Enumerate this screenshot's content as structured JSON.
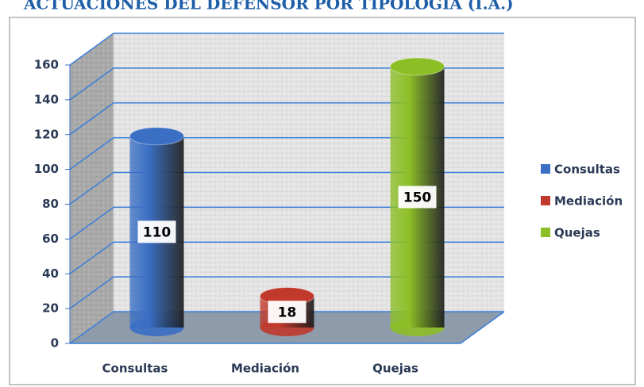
{
  "chart_data": {
    "type": "bar",
    "title": "ACTUACIONES DEL DEFENSOR POR TIPOLOGÍA (I.A.)",
    "categories": [
      "Consultas",
      "Mediación",
      "Quejas"
    ],
    "values": [
      110,
      18,
      150
    ],
    "colors": [
      "#3a6fc4",
      "#c0392b",
      "#8cbf26"
    ],
    "ylim": [
      0,
      160
    ],
    "yticks": [
      0,
      20,
      40,
      60,
      80,
      100,
      120,
      140,
      160
    ],
    "grid": true,
    "legend": "right"
  }
}
